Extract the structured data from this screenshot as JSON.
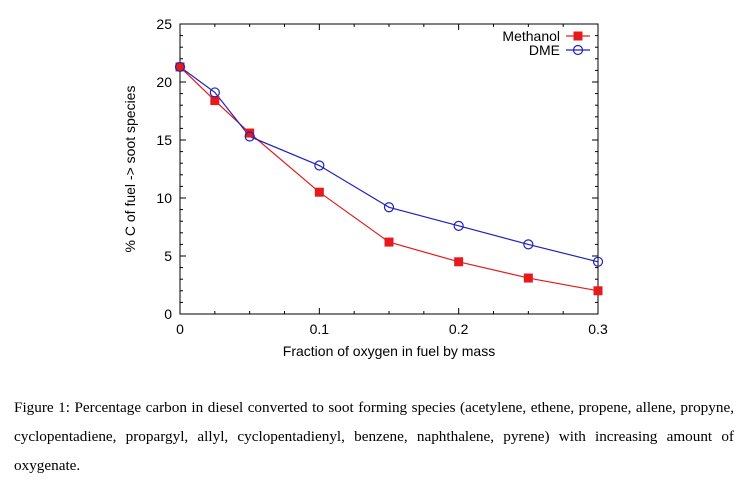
{
  "chart_data": {
    "type": "line",
    "xlabel": "Fraction of oxygen in fuel by mass",
    "ylabel": "% C of fuel -> soot species",
    "xlim": [
      0,
      0.3
    ],
    "ylim": [
      0,
      25
    ],
    "xticks": [
      "0",
      "0.1",
      "0.2",
      "0.3"
    ],
    "yticks": [
      "0",
      "5",
      "10",
      "15",
      "20",
      "25"
    ],
    "grid": false,
    "legend_position": "top-right",
    "series": [
      {
        "name": "Methanol",
        "color": "#e41a1c",
        "marker": "filled-square",
        "x": [
          0,
          0.025,
          0.05,
          0.1,
          0.15,
          0.2,
          0.25,
          0.3
        ],
        "y": [
          21.3,
          18.4,
          15.6,
          10.5,
          6.2,
          4.5,
          3.1,
          2.0
        ]
      },
      {
        "name": "DME",
        "color": "#2020c0",
        "marker": "open-circle",
        "x": [
          0,
          0.025,
          0.05,
          0.1,
          0.15,
          0.2,
          0.25,
          0.3
        ],
        "y": [
          21.3,
          19.1,
          15.3,
          12.8,
          9.2,
          7.6,
          6.0,
          4.5
        ]
      }
    ]
  },
  "caption": "Figure 1: Percentage carbon in diesel converted to soot forming species (acetylene, ethene, propene, allene, propyne, cyclopentadiene, propargyl, allyl, cyclopentadienyl, benzene, naphthalene, pyrene) with increasing amount of oxygenate."
}
